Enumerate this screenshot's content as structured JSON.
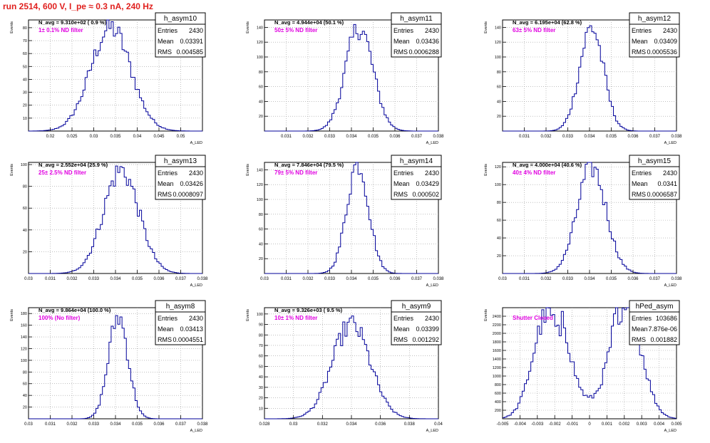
{
  "page": {
    "title": "run 2514,    600 V, I_pe ≈ 0.3 nA, 240 Hz"
  },
  "colors": {
    "title": "#e0201e",
    "histogram": "#00009a",
    "annotation": "#e000e0",
    "axis": "#000000",
    "grid": "#9a9a9a"
  },
  "chart_data": [
    {
      "type": "bar",
      "name": "h_asym10",
      "ylabel": "Events",
      "xlabel": "A_LED",
      "stats": {
        "name": "h_asym10",
        "entries_label": "Entries",
        "entries": "2430",
        "mean_label": "Mean",
        "mean": "0.03391",
        "rms_label": "RMS",
        "rms": "0.004585"
      },
      "avg_label": "N_avg = 9.310e+02 ( 0.9 %)",
      "annotation": "1± 0.1% ND filter",
      "xlim": [
        0.015,
        0.055
      ],
      "ylim": [
        0,
        86
      ],
      "xticks": [
        0.02,
        0.025,
        0.03,
        0.035,
        0.04,
        0.045,
        0.05
      ],
      "xtick_labels": [
        "0.02",
        "0.025",
        "0.03",
        "0.035",
        "0.04",
        "0.045",
        "0.05"
      ],
      "yticks": [
        10,
        20,
        30,
        40,
        50,
        60,
        70,
        80
      ],
      "ytick_labels": [
        "10",
        "20",
        "30",
        "40",
        "50",
        "60",
        "70",
        "80"
      ],
      "profile": {
        "mean": 0.0339,
        "sigma": 0.0046,
        "peak": 80
      }
    },
    {
      "type": "bar",
      "name": "h_asym11",
      "ylabel": "Events",
      "xlabel": "A_LED",
      "stats": {
        "name": "h_asym11",
        "entries_label": "Entries",
        "entries": "2430",
        "mean_label": "Mean",
        "mean": "0.03436",
        "rms_label": "RMS",
        "rms": "0.0006288"
      },
      "avg_label": "N_avg = 4.944e+04 (50.1 %)",
      "annotation": "50± 5% ND filter",
      "xlim": [
        0.03,
        0.038
      ],
      "ylim": [
        0,
        150
      ],
      "xticks": [
        0.031,
        0.032,
        0.033,
        0.034,
        0.035,
        0.036,
        0.037,
        0.038
      ],
      "xtick_labels": [
        "0.031",
        "0.032",
        "0.033",
        "0.034",
        "0.035",
        "0.036",
        "0.037",
        "0.038"
      ],
      "yticks": [
        20,
        40,
        60,
        80,
        100,
        120,
        140
      ],
      "ytick_labels": [
        "20",
        "40",
        "60",
        "80",
        "100",
        "120",
        "140"
      ],
      "profile": {
        "mean": 0.03436,
        "sigma": 0.00063,
        "peak": 140
      }
    },
    {
      "type": "bar",
      "name": "h_asym12",
      "ylabel": "Events",
      "xlabel": "A_LED",
      "stats": {
        "name": "h_asym12",
        "entries_label": "Entries",
        "entries": "2430",
        "mean_label": "Mean",
        "mean": "0.03409",
        "rms_label": "RMS",
        "rms": "0.0005536"
      },
      "avg_label": "N_avg = 6.195e+04 (62.8 %)",
      "annotation": "63± 5% ND filter",
      "xlim": [
        0.03,
        0.038
      ],
      "ylim": [
        0,
        150
      ],
      "xticks": [
        0.031,
        0.032,
        0.033,
        0.034,
        0.035,
        0.036,
        0.037,
        0.038
      ],
      "xtick_labels": [
        "0.031",
        "0.032",
        "0.033",
        "0.034",
        "0.035",
        "0.036",
        "0.037",
        "0.038"
      ],
      "yticks": [
        20,
        40,
        60,
        80,
        100,
        120,
        140
      ],
      "ytick_labels": [
        "20",
        "40",
        "60",
        "80",
        "100",
        "120",
        "140"
      ],
      "profile": {
        "mean": 0.03409,
        "sigma": 0.00055,
        "peak": 140
      }
    },
    {
      "type": "bar",
      "name": "h_asym13",
      "ylabel": "Events",
      "xlabel": "A_LED",
      "stats": {
        "name": "h_asym13",
        "entries_label": "Entries",
        "entries": "2430",
        "mean_label": "Mean",
        "mean": "0.03426",
        "rms_label": "RMS",
        "rms": "0.0008097"
      },
      "avg_label": "N_avg = 2.552e+04 (25.9 %)",
      "annotation": "25± 2.5% ND filter",
      "xlim": [
        0.03,
        0.038
      ],
      "ylim": [
        0,
        102
      ],
      "xticks": [
        0.03,
        0.031,
        0.032,
        0.033,
        0.034,
        0.035,
        0.036,
        0.037,
        0.038
      ],
      "xtick_labels": [
        "0.03",
        "0.031",
        "0.032",
        "0.033",
        "0.034",
        "0.035",
        "0.036",
        "0.037",
        "0.038"
      ],
      "yticks": [
        20,
        40,
        60,
        80,
        100
      ],
      "ytick_labels": [
        "20",
        "40",
        "60",
        "80",
        "100"
      ],
      "profile": {
        "mean": 0.03426,
        "sigma": 0.00081,
        "peak": 95
      }
    },
    {
      "type": "bar",
      "name": "h_asym14",
      "ylabel": "Events",
      "xlabel": "A_LED",
      "stats": {
        "name": "h_asym14",
        "entries_label": "Entries",
        "entries": "2430",
        "mean_label": "Mean",
        "mean": "0.03429",
        "rms_label": "RMS",
        "rms": "0.000502"
      },
      "avg_label": "N_avg = 7.846e+04 (79.5 %)",
      "annotation": "79± 5% ND filter",
      "xlim": [
        0.03,
        0.038
      ],
      "ylim": [
        0,
        150
      ],
      "xticks": [
        0.03,
        0.031,
        0.032,
        0.033,
        0.034,
        0.035,
        0.036,
        0.037,
        0.038
      ],
      "xtick_labels": [
        "0.03",
        "0.031",
        "0.032",
        "0.033",
        "0.034",
        "0.035",
        "0.036",
        "0.037",
        "0.038"
      ],
      "yticks": [
        20,
        40,
        60,
        80,
        100,
        120,
        140
      ],
      "ytick_labels": [
        "20",
        "40",
        "60",
        "80",
        "100",
        "120",
        "140"
      ],
      "profile": {
        "mean": 0.03429,
        "sigma": 0.0005,
        "peak": 150
      }
    },
    {
      "type": "bar",
      "name": "h_asym15",
      "ylabel": "Events",
      "xlabel": "A_LED",
      "stats": {
        "name": "h_asym15",
        "entries_label": "Entries",
        "entries": "2430",
        "mean_label": "Mean",
        "mean": "0.0341",
        "rms_label": "RMS",
        "rms": "0.0006587"
      },
      "avg_label": "N_avg = 4.000e+04 (40.6 %)",
      "annotation": "40± 4% ND filter",
      "xlim": [
        0.03,
        0.038
      ],
      "ylim": [
        0,
        125
      ],
      "xticks": [
        0.03,
        0.031,
        0.032,
        0.033,
        0.034,
        0.035,
        0.036,
        0.037,
        0.038
      ],
      "xtick_labels": [
        "0.03",
        "0.031",
        "0.032",
        "0.033",
        "0.034",
        "0.035",
        "0.036",
        "0.037",
        "0.038"
      ],
      "yticks": [
        20,
        40,
        60,
        80,
        100,
        120
      ],
      "ytick_labels": [
        "20",
        "40",
        "60",
        "80",
        "100",
        "120"
      ],
      "profile": {
        "mean": 0.0341,
        "sigma": 0.00066,
        "peak": 120
      }
    },
    {
      "type": "bar",
      "name": "h_asym8",
      "ylabel": "Events",
      "xlabel": "A_LED",
      "stats": {
        "name": "h_asym8",
        "entries_label": "Entries",
        "entries": "2430",
        "mean_label": "Mean",
        "mean": "0.03413",
        "rms_label": "RMS",
        "rms": "0.0004551"
      },
      "avg_label": "N_avg = 9.864e+04 (100.0 %)",
      "annotation": "100% (No filter)",
      "xlim": [
        0.03,
        0.038
      ],
      "ylim": [
        0,
        190
      ],
      "xticks": [
        0.03,
        0.031,
        0.032,
        0.033,
        0.034,
        0.035,
        0.036,
        0.037,
        0.038
      ],
      "xtick_labels": [
        "0.03",
        "0.031",
        "0.032",
        "0.033",
        "0.034",
        "0.035",
        "0.036",
        "0.037",
        "0.038"
      ],
      "yticks": [
        20,
        40,
        60,
        80,
        100,
        120,
        140,
        160,
        180
      ],
      "ytick_labels": [
        "20",
        "40",
        "60",
        "80",
        "100",
        "120",
        "140",
        "160",
        "180"
      ],
      "profile": {
        "mean": 0.03413,
        "sigma": 0.00045,
        "peak": 175
      }
    },
    {
      "type": "bar",
      "name": "h_asym9",
      "ylabel": "Events",
      "xlabel": "A_LED",
      "stats": {
        "name": "h_asym9",
        "entries_label": "Entries",
        "entries": "2430",
        "mean_label": "Mean",
        "mean": "0.03399",
        "rms_label": "RMS",
        "rms": "0.001292"
      },
      "avg_label": "N_avg = 9.326e+03 ( 9.5 %)",
      "annotation": "10± 1% ND filter",
      "xlim": [
        0.028,
        0.04
      ],
      "ylim": [
        0,
        106
      ],
      "xticks": [
        0.028,
        0.03,
        0.032,
        0.034,
        0.036,
        0.038,
        0.04
      ],
      "xtick_labels": [
        "0.028",
        "0.03",
        "0.032",
        "0.034",
        "0.036",
        "0.038",
        "0.04"
      ],
      "yticks": [
        10,
        20,
        30,
        40,
        50,
        60,
        70,
        80,
        90,
        100
      ],
      "ytick_labels": [
        "10",
        "20",
        "30",
        "40",
        "50",
        "60",
        "70",
        "80",
        "90",
        "100"
      ],
      "profile": {
        "mean": 0.03399,
        "sigma": 0.0013,
        "peak": 90
      }
    },
    {
      "type": "bar",
      "name": "hPed_asym",
      "ylabel": "Events",
      "xlabel": "A_LED",
      "stats": {
        "name": "hPed_asym",
        "entries_label": "Entries",
        "entries": "103686",
        "mean_label": "Mean",
        "mean": "7.876e-06",
        "rms_label": "RMS",
        "rms": "0.001882"
      },
      "avg_label": "",
      "annotation": "Shutter Closed",
      "xlim": [
        -0.005,
        0.005
      ],
      "ylim": [
        0,
        2600
      ],
      "xticks": [
        -0.005,
        -0.004,
        -0.003,
        -0.002,
        -0.001,
        0,
        0.001,
        0.002,
        0.003,
        0.004,
        0.005
      ],
      "xtick_labels": [
        "-0.005",
        "-0.004",
        "-0.003",
        "-0.002",
        "-0.001",
        "0",
        "0.001",
        "0.002",
        "0.003",
        "0.004",
        "0.005"
      ],
      "yticks": [
        200,
        400,
        600,
        800,
        1000,
        1200,
        1400,
        1600,
        1800,
        2000,
        2200,
        2400
      ],
      "ytick_labels": [
        "200",
        "400",
        "600",
        "800",
        "1000",
        "1200",
        "1400",
        "1600",
        "1800",
        "2000",
        "2200",
        "2400"
      ],
      "profile": {
        "mean": 0.0,
        "sigma": 0.00188,
        "peak": 2450,
        "double": true
      }
    }
  ]
}
